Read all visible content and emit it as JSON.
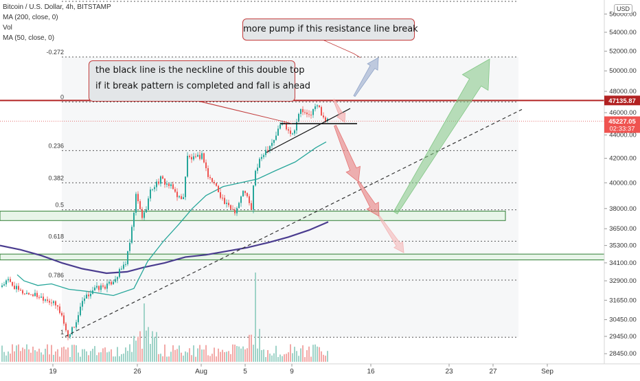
{
  "legend": {
    "title": "Bitcoin / U.S. Dollar, 4h, BITSTAMP",
    "ma200": "MA (200, close, 0)",
    "vol": "Vol",
    "ma50": "MA (50, close, 0)"
  },
  "currency": "USD",
  "annotations": {
    "resistance_note": "more pump if this resistance line break",
    "neckline_line1": "the black line is the neckline of this double top",
    "neckline_line2": "if it break pattern is completed and fall is ahead"
  },
  "price_tags": {
    "resistance": "47135.87",
    "last": "45227.05",
    "countdown": "02:33:37"
  },
  "colors": {
    "candle_up": "#26a69a",
    "candle_down": "#ef5350",
    "ma50": "#26a69a",
    "ma200": "#4a3c8f",
    "resistance_line": "#b22222",
    "zone_fill": "#e8f5e9",
    "zone_border": "#2e7d32",
    "arrow_red": "#e57373",
    "arrow_green": "#81c784",
    "arrow_blue": "#90a4c8"
  },
  "chart_data": {
    "type": "candlestick",
    "symbol": "BTCUSD",
    "exchange": "BITSTAMP",
    "interval": "4h",
    "x_ticks": [
      "19",
      "26",
      "Aug",
      "5",
      "9",
      "16",
      "23",
      "27",
      "Sep"
    ],
    "y_ticks": [
      28450,
      29450,
      30450,
      31650,
      32900,
      34100,
      35300,
      36500,
      38000,
      40000,
      42000,
      44000,
      46000,
      48000,
      50000,
      52000,
      54000,
      56000
    ],
    "y_scale": "log",
    "ylim": [
      28000,
      57500
    ],
    "fib_levels": [
      {
        "label": "-0.272",
        "price": 51400
      },
      {
        "label": "0",
        "price": 47000
      },
      {
        "label": "0.236",
        "price": 42650
      },
      {
        "label": "0.382",
        "price": 40000
      },
      {
        "label": "0.5",
        "price": 37900
      },
      {
        "label": "0.618",
        "price": 35600
      },
      {
        "label": "0.786",
        "price": 32950
      },
      {
        "label": "1",
        "price": 29400
      }
    ],
    "resistance_price": 47135.87,
    "last_price": 45227.05,
    "neckline_price": 45000,
    "support_zones": [
      {
        "low": 37100,
        "high": 37800
      },
      {
        "low": 34300,
        "high": 34700
      }
    ],
    "candles_summary": {
      "start_price": 32600,
      "low_price": 29300,
      "high_price": 46800,
      "end_price": 45227
    },
    "ma50_path": [
      [
        25,
        33300
      ],
      [
        35,
        32900
      ],
      [
        55,
        32600
      ],
      [
        75,
        32700
      ],
      [
        100,
        32350
      ],
      [
        130,
        32200
      ],
      [
        165,
        31950
      ],
      [
        195,
        32400
      ],
      [
        215,
        34200
      ],
      [
        238,
        35600
      ],
      [
        260,
        36800
      ],
      [
        280,
        38000
      ],
      [
        300,
        39000
      ],
      [
        325,
        39700
      ],
      [
        350,
        40000
      ],
      [
        375,
        40300
      ],
      [
        400,
        40950
      ],
      [
        430,
        41700
      ],
      [
        460,
        42900
      ],
      [
        475,
        43400
      ]
    ],
    "ma200_path": [
      [
        0,
        35300
      ],
      [
        30,
        35000
      ],
      [
        60,
        34600
      ],
      [
        90,
        34100
      ],
      [
        120,
        33700
      ],
      [
        155,
        33400
      ],
      [
        185,
        33500
      ],
      [
        210,
        33800
      ],
      [
        240,
        34100
      ],
      [
        270,
        34500
      ],
      [
        300,
        34650
      ],
      [
        330,
        34900
      ],
      [
        360,
        35150
      ],
      [
        390,
        35500
      ],
      [
        420,
        35900
      ],
      [
        450,
        36400
      ],
      [
        478,
        37000
      ]
    ],
    "diagonal_trend": {
      "start": [
        95,
        29450
      ],
      "end": [
        760,
        46300
      ]
    }
  }
}
